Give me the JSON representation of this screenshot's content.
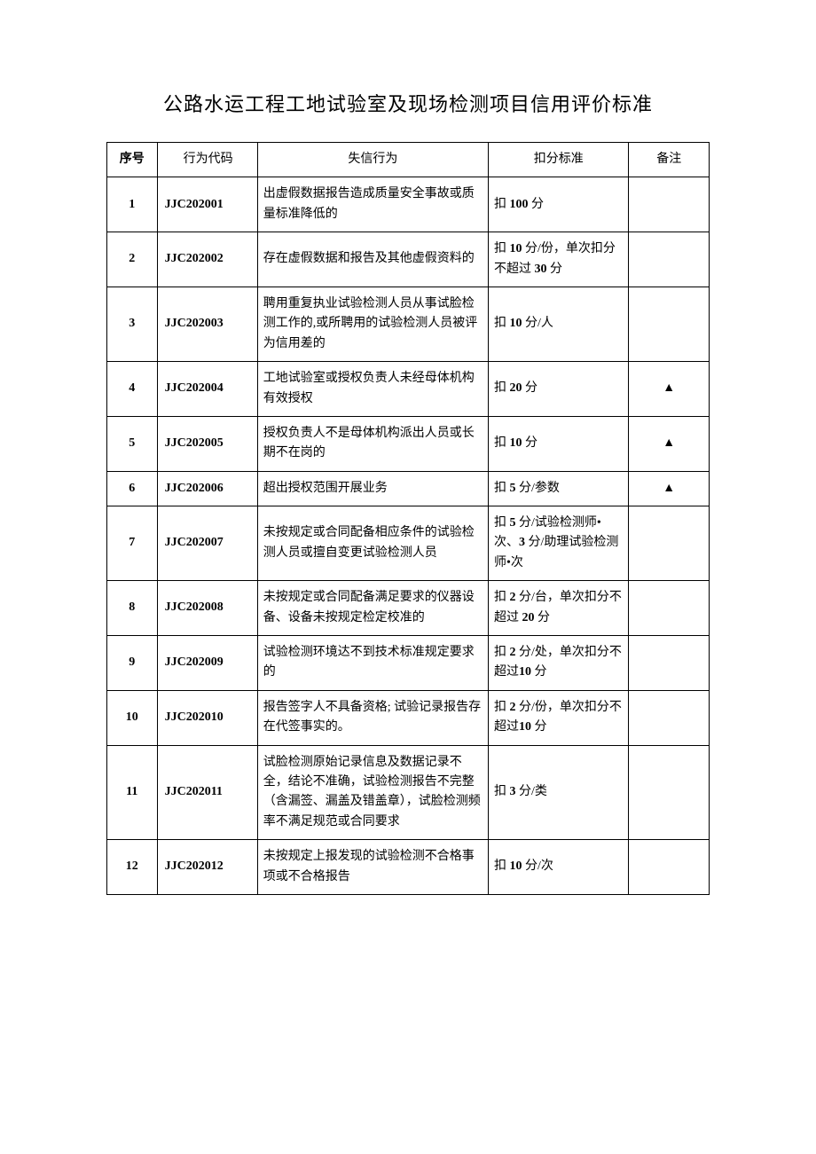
{
  "title": "公路水运工程工地试验室及现场检测项目信用评价标准",
  "headers": {
    "seq": "序号",
    "code": "行为代码",
    "behavior": "失信行为",
    "standard": "扣分标准",
    "remark": "备注"
  },
  "rows": [
    {
      "seq": "1",
      "code": "JJC202001",
      "behavior": "出虚假数据报告造成质量安全事故或质量标准降低的",
      "standard": "扣 100 分",
      "remark": ""
    },
    {
      "seq": "2",
      "code": "JJC202002",
      "behavior": "存在虚假数据和报告及其他虚假资料的",
      "standard": "扣 10 分/份，单次扣分不超过 30 分",
      "remark": ""
    },
    {
      "seq": "3",
      "code": "JJC202003",
      "behavior": "聘用重复执业试验检测人员从事试脸检测工作的,或所聘用的试验检测人员被评为信用差的",
      "standard": "扣 10 分/人",
      "remark": ""
    },
    {
      "seq": "4",
      "code": "JJC202004",
      "behavior": "工地试验室或授权负责人未经母体机构有效授权",
      "standard": "扣 20 分",
      "remark": "▲"
    },
    {
      "seq": "5",
      "code": "JJC202005",
      "behavior": "授权负责人不是母体机构派出人员或长期不在岗的",
      "standard": "扣 10 分",
      "remark": "▲"
    },
    {
      "seq": "6",
      "code": "JJC202006",
      "behavior": "超出授权范围开展业务",
      "standard": "扣 5 分/参数",
      "remark": "▲"
    },
    {
      "seq": "7",
      "code": "JJC202007",
      "behavior": "未按规定或合同配备相应条件的试验检测人员或擅自变更试验检测人员",
      "standard": "扣 5 分/试验检测师•次、3 分/助理试验检测师•次",
      "remark": ""
    },
    {
      "seq": "8",
      "code": "JJC202008",
      "behavior": "未按规定或合同配备满足要求的仪器设备、设备未按规定检定校准的",
      "standard": "扣 2 分/台，单次扣分不超过 20 分",
      "remark": ""
    },
    {
      "seq": "9",
      "code": "JJC202009",
      "behavior": "试验检测环境达不到技术标准规定要求的",
      "standard": "扣 2 分/处，单次扣分不超过10 分",
      "remark": ""
    },
    {
      "seq": "10",
      "code": "JJC202010",
      "behavior": "报告签字人不具备资格; 试验记录报告存在代签事实的。",
      "standard": "扣 2 分/份，单次扣分不超过10 分",
      "remark": ""
    },
    {
      "seq": "11",
      "code": "JJC202011",
      "behavior": "试脸检测原始记录信息及数据记录不全，结论不准确，试验检测报告不完整（含漏签、漏盖及错盖章），试脸检测频率不满足规范或合同要求",
      "standard": "扣 3 分/类",
      "remark": ""
    },
    {
      "seq": "12",
      "code": "JJC202012",
      "behavior": "未按规定上报发现的试验检测不合格事项或不合格报告",
      "standard": "扣 10 分/次",
      "remark": ""
    }
  ]
}
